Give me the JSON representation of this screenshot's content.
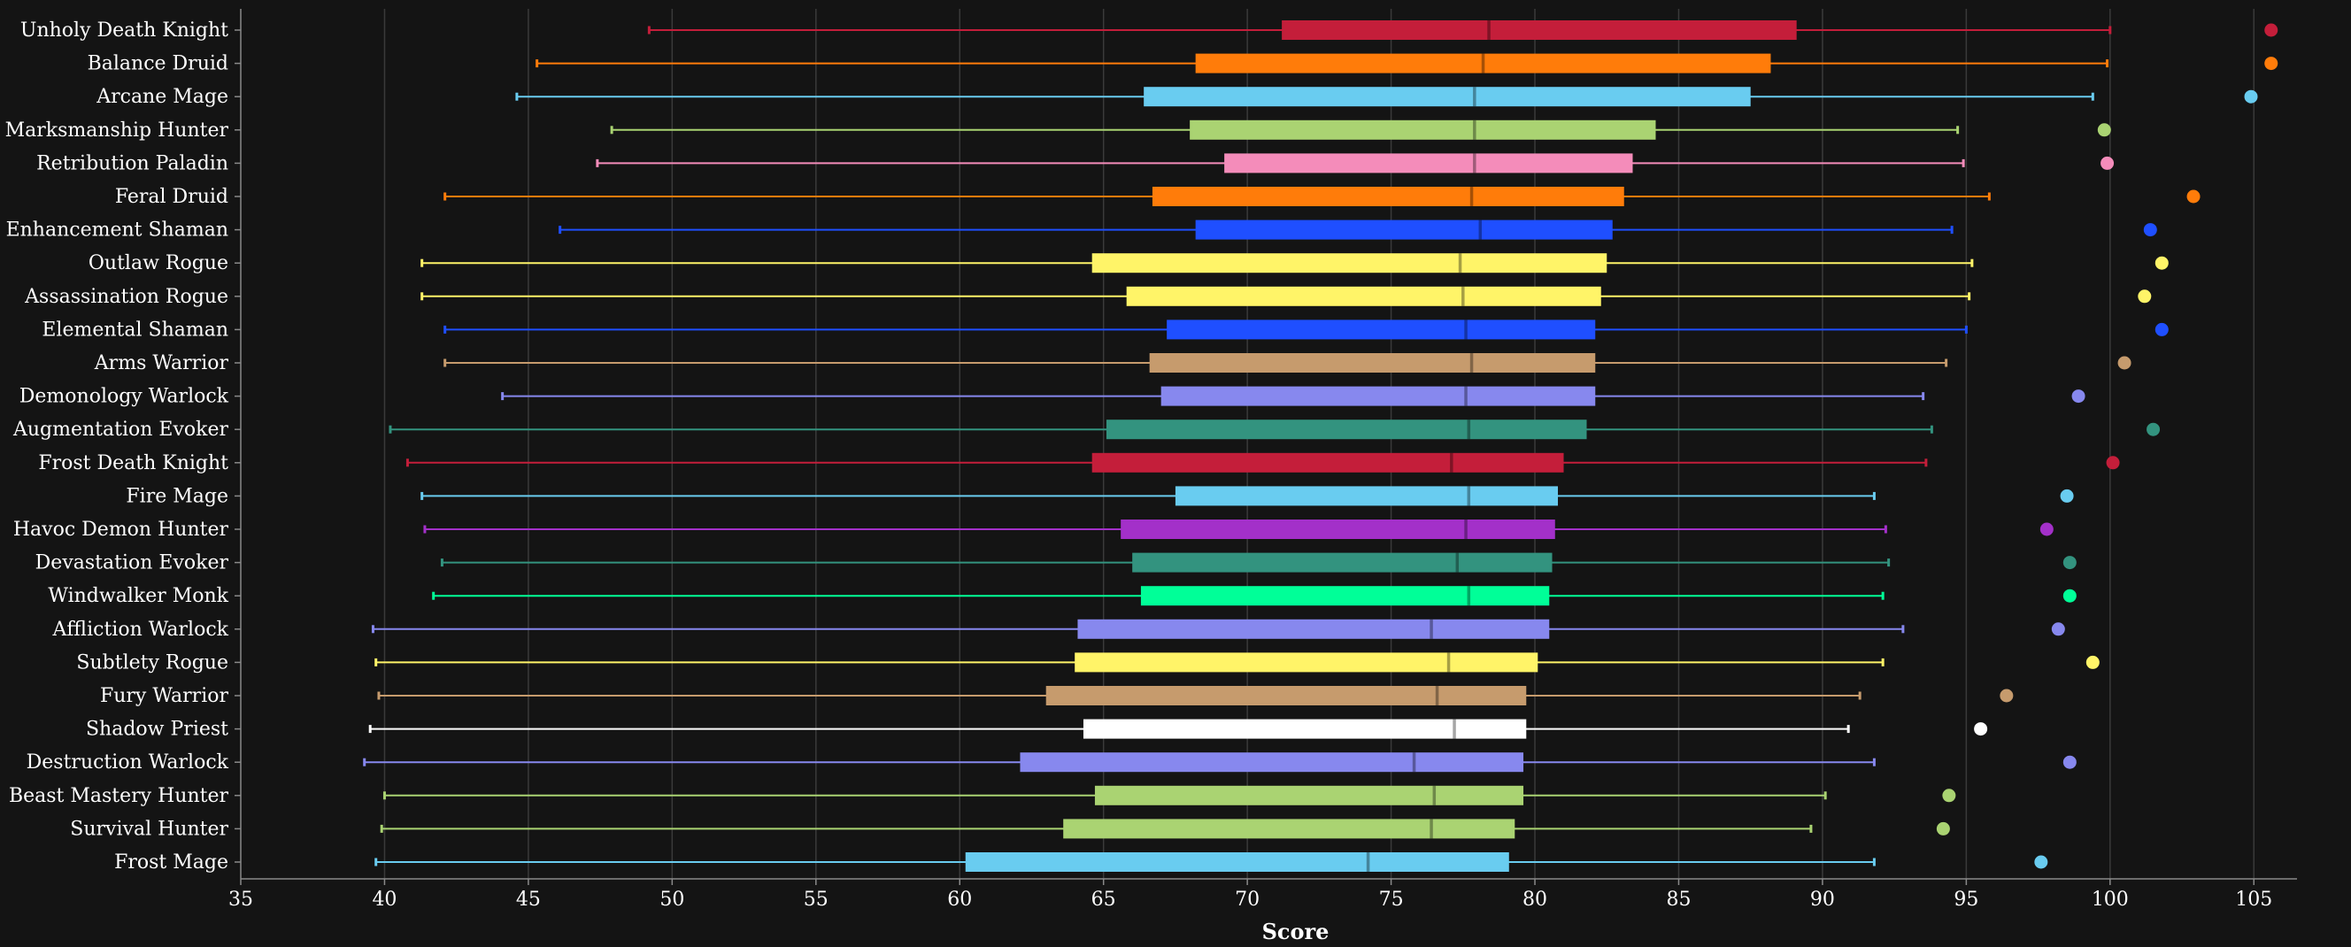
{
  "chart_data": {
    "type": "boxplot",
    "orientation": "horizontal",
    "title": "",
    "xlabel": "Score",
    "ylabel": "",
    "xlim": [
      35,
      106.5
    ],
    "xticks": [
      35,
      40,
      45,
      50,
      55,
      60,
      65,
      70,
      75,
      80,
      85,
      90,
      95,
      100,
      105
    ],
    "grid": "vertical",
    "legend": "none",
    "background": "#141414",
    "series": [
      {
        "name": "Unholy Death Knight",
        "color": "#C41E3A",
        "whisker_low": 49.2,
        "q1": 71.2,
        "median": 78.4,
        "q3": 89.1,
        "whisker_high": 100.0,
        "outlier": 105.6
      },
      {
        "name": "Balance Druid",
        "color": "#FF7C0A",
        "whisker_low": 45.3,
        "q1": 68.2,
        "median": 78.2,
        "q3": 88.2,
        "whisker_high": 99.9,
        "outlier": 105.6
      },
      {
        "name": "Arcane Mage",
        "color": "#69CCF0",
        "whisker_low": 44.6,
        "q1": 66.4,
        "median": 77.9,
        "q3": 87.5,
        "whisker_high": 99.4,
        "outlier": 104.9
      },
      {
        "name": "Marksmanship Hunter",
        "color": "#AAD372",
        "whisker_low": 47.9,
        "q1": 68.0,
        "median": 77.9,
        "q3": 84.2,
        "whisker_high": 94.7,
        "outlier": 99.8
      },
      {
        "name": "Retribution Paladin",
        "color": "#F48CBA",
        "whisker_low": 47.4,
        "q1": 69.2,
        "median": 77.9,
        "q3": 83.4,
        "whisker_high": 94.9,
        "outlier": 99.9
      },
      {
        "name": "Feral Druid",
        "color": "#FF7C0A",
        "whisker_low": 42.1,
        "q1": 66.7,
        "median": 77.8,
        "q3": 83.1,
        "whisker_high": 95.8,
        "outlier": 102.9
      },
      {
        "name": "Enhancement Shaman",
        "color": "#1F4FFF",
        "whisker_low": 46.1,
        "q1": 68.2,
        "median": 78.1,
        "q3": 82.7,
        "whisker_high": 94.5,
        "outlier": 101.4
      },
      {
        "name": "Outlaw Rogue",
        "color": "#FFF468",
        "whisker_low": 41.3,
        "q1": 64.6,
        "median": 77.4,
        "q3": 82.5,
        "whisker_high": 95.2,
        "outlier": 101.8
      },
      {
        "name": "Assassination Rogue",
        "color": "#FFF468",
        "whisker_low": 41.3,
        "q1": 65.8,
        "median": 77.5,
        "q3": 82.3,
        "whisker_high": 95.1,
        "outlier": 101.2
      },
      {
        "name": "Elemental Shaman",
        "color": "#1F4FFF",
        "whisker_low": 42.1,
        "q1": 67.2,
        "median": 77.6,
        "q3": 82.1,
        "whisker_high": 95.0,
        "outlier": 101.8
      },
      {
        "name": "Arms Warrior",
        "color": "#C69B6D",
        "whisker_low": 42.1,
        "q1": 66.6,
        "median": 77.8,
        "q3": 82.1,
        "whisker_high": 94.3,
        "outlier": 100.5
      },
      {
        "name": "Demonology Warlock",
        "color": "#8788EE",
        "whisker_low": 44.1,
        "q1": 67.0,
        "median": 77.6,
        "q3": 82.1,
        "whisker_high": 93.5,
        "outlier": 98.9
      },
      {
        "name": "Augmentation Evoker",
        "color": "#33937F",
        "whisker_low": 40.2,
        "q1": 65.1,
        "median": 77.7,
        "q3": 81.8,
        "whisker_high": 93.8,
        "outlier": 101.5
      },
      {
        "name": "Frost Death Knight",
        "color": "#C41E3A",
        "whisker_low": 40.8,
        "q1": 64.6,
        "median": 77.1,
        "q3": 81.0,
        "whisker_high": 93.6,
        "outlier": 100.1
      },
      {
        "name": "Fire Mage",
        "color": "#69CCF0",
        "whisker_low": 41.3,
        "q1": 67.5,
        "median": 77.7,
        "q3": 80.8,
        "whisker_high": 91.8,
        "outlier": 98.5
      },
      {
        "name": "Havoc Demon Hunter",
        "color": "#A330C9",
        "whisker_low": 41.4,
        "q1": 65.6,
        "median": 77.6,
        "q3": 80.7,
        "whisker_high": 92.2,
        "outlier": 97.8
      },
      {
        "name": "Devastation Evoker",
        "color": "#33937F",
        "whisker_low": 42.0,
        "q1": 66.0,
        "median": 77.3,
        "q3": 80.6,
        "whisker_high": 92.3,
        "outlier": 98.6
      },
      {
        "name": "Windwalker Monk",
        "color": "#00FF98",
        "whisker_low": 41.7,
        "q1": 66.3,
        "median": 77.7,
        "q3": 80.5,
        "whisker_high": 92.1,
        "outlier": 98.6
      },
      {
        "name": "Affliction Warlock",
        "color": "#8788EE",
        "whisker_low": 39.6,
        "q1": 64.1,
        "median": 76.4,
        "q3": 80.5,
        "whisker_high": 92.8,
        "outlier": 98.2
      },
      {
        "name": "Subtlety Rogue",
        "color": "#FFF468",
        "whisker_low": 39.7,
        "q1": 64.0,
        "median": 77.0,
        "q3": 80.1,
        "whisker_high": 92.1,
        "outlier": 99.4
      },
      {
        "name": "Fury Warrior",
        "color": "#C69B6D",
        "whisker_low": 39.8,
        "q1": 63.0,
        "median": 76.6,
        "q3": 79.7,
        "whisker_high": 91.3,
        "outlier": 96.4
      },
      {
        "name": "Shadow Priest",
        "color": "#FFFFFF",
        "whisker_low": 39.5,
        "q1": 64.3,
        "median": 77.2,
        "q3": 79.7,
        "whisker_high": 90.9,
        "outlier": 95.5
      },
      {
        "name": "Destruction Warlock",
        "color": "#8788EE",
        "whisker_low": 39.3,
        "q1": 62.1,
        "median": 75.8,
        "q3": 79.6,
        "whisker_high": 91.8,
        "outlier": 98.6
      },
      {
        "name": "Beast Mastery Hunter",
        "color": "#AAD372",
        "whisker_low": 40.0,
        "q1": 64.7,
        "median": 76.5,
        "q3": 79.6,
        "whisker_high": 90.1,
        "outlier": 94.4
      },
      {
        "name": "Survival Hunter",
        "color": "#AAD372",
        "whisker_low": 39.9,
        "q1": 63.6,
        "median": 76.4,
        "q3": 79.3,
        "whisker_high": 89.6,
        "outlier": 94.2
      },
      {
        "name": "Frost Mage",
        "color": "#69CCF0",
        "whisker_low": 39.7,
        "q1": 60.2,
        "median": 74.2,
        "q3": 79.1,
        "whisker_high": 91.8,
        "outlier": 97.6
      }
    ]
  }
}
